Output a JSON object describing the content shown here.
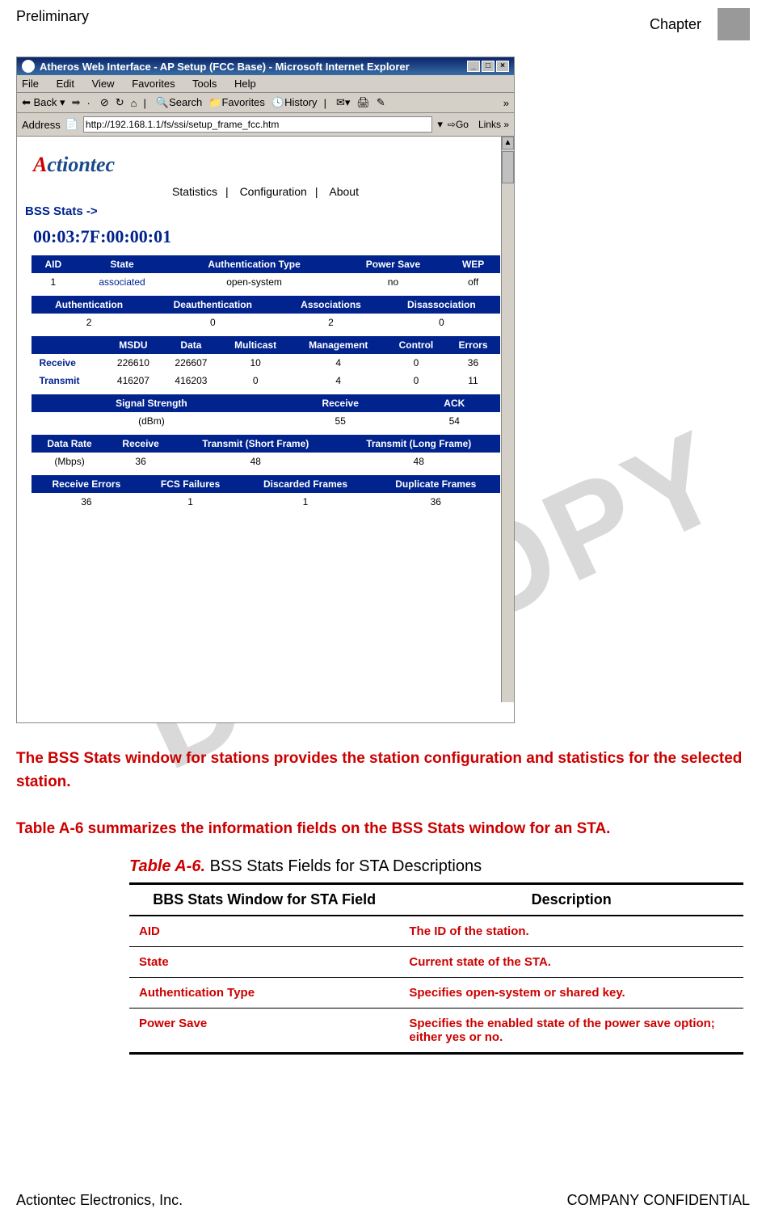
{
  "header": {
    "left": "Preliminary",
    "right": "Chapter"
  },
  "footer": {
    "left": "Actiontec Electronics, Inc.",
    "right": "COMPANY CONFIDENTIAL"
  },
  "watermark": "DO    COPY",
  "browser": {
    "title": "Atheros Web Interface - AP Setup (FCC Base) - Microsoft Internet Explorer",
    "menus": [
      "File",
      "Edit",
      "View",
      "Favorites",
      "Tools",
      "Help"
    ],
    "toolbar": {
      "back": "Back",
      "search": "Search",
      "favorites": "Favorites",
      "history": "History"
    },
    "address_label": "Address",
    "address_value": "http://192.168.1.1/fs/ssi/setup_frame_fcc.htm",
    "go": "Go",
    "links": "Links",
    "logo": "Actiontec",
    "tabs": [
      "Statistics",
      "Configuration",
      "About"
    ],
    "bss_label": "BSS Stats ->",
    "mac": "00:03:7F:00:00:01",
    "t1": {
      "headers": [
        "AID",
        "State",
        "Authentication Type",
        "Power Save",
        "WEP"
      ],
      "row": [
        "1",
        "associated",
        "open-system",
        "no",
        "off"
      ]
    },
    "t2": {
      "headers": [
        "Authentication",
        "Deauthentication",
        "Associations",
        "Disassociation"
      ],
      "row": [
        "2",
        "0",
        "2",
        "0"
      ]
    },
    "t3": {
      "headers": [
        "",
        "MSDU",
        "Data",
        "Multicast",
        "Management",
        "Control",
        "Errors"
      ],
      "rows": [
        [
          "Receive",
          "226610",
          "226607",
          "10",
          "4",
          "0",
          "36"
        ],
        [
          "Transmit",
          "416207",
          "416203",
          "0",
          "4",
          "0",
          "11"
        ]
      ]
    },
    "t4": {
      "headers": [
        "Signal Strength",
        "Receive",
        "ACK"
      ],
      "row": [
        "(dBm)",
        "55",
        "54"
      ]
    },
    "t5": {
      "headers": [
        "Data Rate",
        "Receive",
        "Transmit (Short Frame)",
        "Transmit (Long Frame)"
      ],
      "row": [
        "(Mbps)",
        "36",
        "48",
        "48"
      ]
    },
    "t6": {
      "headers": [
        "Receive Errors",
        "FCS Failures",
        "Discarded Frames",
        "Duplicate Frames"
      ],
      "row": [
        "36",
        "1",
        "1",
        "36"
      ]
    }
  },
  "paragraphs": [
    "The BSS Stats window for stations provides the station configuration and statistics for the selected station.",
    "Table A-6 summarizes the information fields on the BSS Stats window for an STA."
  ],
  "table_caption": {
    "label": "Table A-6.",
    "text": "BSS Stats Fields for STA Descriptions"
  },
  "desc_table": {
    "headers": [
      "BBS Stats Window for STA Field",
      "Description"
    ],
    "rows": [
      [
        "AID",
        "The ID of the station."
      ],
      [
        "State",
        "Current state of the STA."
      ],
      [
        "Authentication Type",
        "Specifies open-system or shared key."
      ],
      [
        "Power Save",
        "Specifies the enabled state of the power save option; either yes or no."
      ]
    ]
  }
}
